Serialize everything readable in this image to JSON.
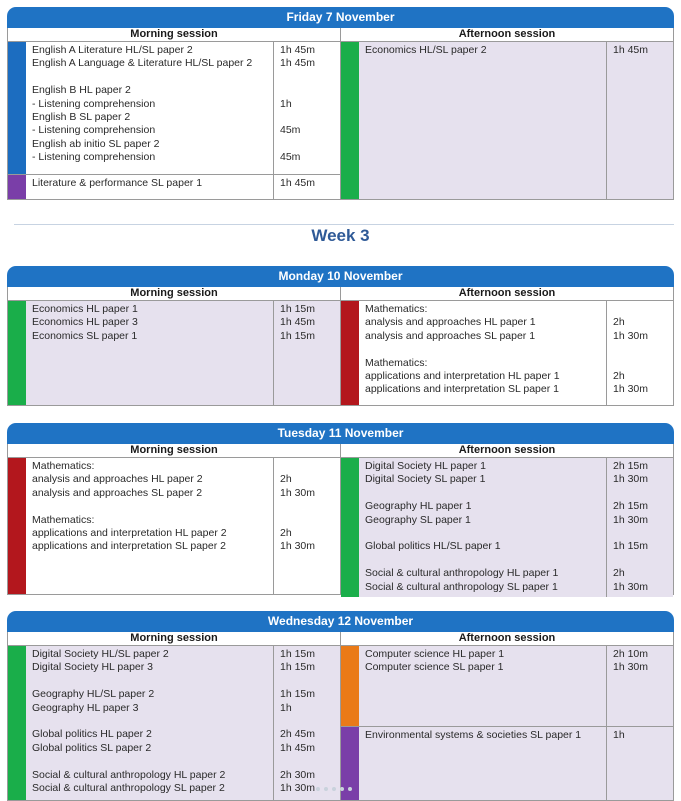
{
  "week_label": "Week 3",
  "days": [
    {
      "title": "Friday 7 November",
      "morning": {
        "label": "Morning session",
        "blocks": [
          {
            "color": "#1c6dc0",
            "lines": [
              {
                "subject": "English A Literature HL/SL paper 2",
                "duration": "1h 45m"
              },
              {
                "subject": "English A Language & Literature HL/SL paper 2",
                "duration": "1h 45m"
              },
              {
                "subject": "",
                "duration": ""
              },
              {
                "subject": "English B HL paper 2",
                "duration": ""
              },
              {
                "subject": "- Listening comprehension",
                "duration": "1h"
              },
              {
                "subject": "English B SL paper 2",
                "duration": ""
              },
              {
                "subject": "- Listening comprehension",
                "duration": "45m"
              },
              {
                "subject": "English ab initio SL paper 2",
                "duration": ""
              },
              {
                "subject": "- Listening comprehension",
                "duration": "45m"
              }
            ]
          },
          {
            "color": "#7a3ea8",
            "lines": [
              {
                "subject": "Literature & performance SL paper 1",
                "duration": "1h 45m"
              }
            ]
          }
        ]
      },
      "afternoon": {
        "label": "Afternoon session",
        "blocks": [
          {
            "color": "#1aae4a",
            "lines": [
              {
                "subject": "Economics HL/SL paper 2",
                "duration": "1h 45m"
              }
            ]
          }
        ]
      }
    },
    {
      "title": "Monday 10 November",
      "morning": {
        "label": "Morning session",
        "blocks": [
          {
            "color": "#1aae4a",
            "lines": [
              {
                "subject": "Economics HL paper 1",
                "duration": "1h 15m"
              },
              {
                "subject": "Economics HL paper 3",
                "duration": "1h 45m"
              },
              {
                "subject": "Economics SL paper 1",
                "duration": "1h 15m"
              }
            ]
          }
        ]
      },
      "afternoon": {
        "label": "Afternoon session",
        "blocks": [
          {
            "color": "#b3171d",
            "lines": [
              {
                "subject": "Mathematics:",
                "duration": ""
              },
              {
                "subject": "analysis and approaches HL paper 1",
                "duration": "2h"
              },
              {
                "subject": "analysis and approaches SL paper 1",
                "duration": "1h 30m"
              },
              {
                "subject": "",
                "duration": ""
              },
              {
                "subject": "Mathematics:",
                "duration": ""
              },
              {
                "subject": "applications and interpretation HL paper 1",
                "duration": "2h"
              },
              {
                "subject": "applications and interpretation SL paper 1",
                "duration": "1h 30m"
              }
            ]
          }
        ]
      }
    },
    {
      "title": "Tuesday 11 November",
      "morning": {
        "label": "Morning session",
        "blocks": [
          {
            "color": "#b3171d",
            "lines": [
              {
                "subject": "Mathematics:",
                "duration": ""
              },
              {
                "subject": "analysis and approaches HL paper 2",
                "duration": "2h"
              },
              {
                "subject": "analysis and approaches SL paper 2",
                "duration": "1h 30m"
              },
              {
                "subject": "",
                "duration": ""
              },
              {
                "subject": "Mathematics:",
                "duration": ""
              },
              {
                "subject": "applications and interpretation HL paper 2",
                "duration": "2h"
              },
              {
                "subject": "applications and interpretation SL paper 2",
                "duration": "1h 30m"
              }
            ]
          }
        ]
      },
      "afternoon": {
        "label": "Afternoon session",
        "blocks": [
          {
            "color": "#1aae4a",
            "lines": [
              {
                "subject": "Digital Society HL paper 1",
                "duration": "2h 15m"
              },
              {
                "subject": "Digital Society SL paper 1",
                "duration": "1h 30m"
              },
              {
                "subject": "",
                "duration": ""
              },
              {
                "subject": "Geography HL paper 1",
                "duration": "2h 15m"
              },
              {
                "subject": "Geography SL paper 1",
                "duration": "1h 30m"
              },
              {
                "subject": "",
                "duration": ""
              },
              {
                "subject": "Global politics HL/SL paper 1",
                "duration": "1h 15m"
              },
              {
                "subject": "",
                "duration": ""
              },
              {
                "subject": "Social & cultural anthropology HL paper 1",
                "duration": "2h"
              },
              {
                "subject": "Social & cultural anthropology SL paper 1",
                "duration": "1h 30m"
              }
            ]
          }
        ]
      }
    },
    {
      "title": "Wednesday 12 November",
      "morning": {
        "label": "Morning session",
        "blocks": [
          {
            "color": "#1aae4a",
            "lines": [
              {
                "subject": "Digital Society HL/SL paper 2",
                "duration": "1h 15m"
              },
              {
                "subject": "Digital Society HL paper 3",
                "duration": "1h 15m"
              },
              {
                "subject": "",
                "duration": ""
              },
              {
                "subject": "Geography HL/SL paper 2",
                "duration": "1h 15m"
              },
              {
                "subject": "Geography HL paper 3",
                "duration": "1h"
              },
              {
                "subject": "",
                "duration": ""
              },
              {
                "subject": "Global politics HL paper 2",
                "duration": "2h 45m"
              },
              {
                "subject": "Global politics SL paper 2",
                "duration": "1h 45m"
              },
              {
                "subject": "",
                "duration": ""
              },
              {
                "subject": "Social & cultural anthropology HL paper 2",
                "duration": "2h 30m"
              },
              {
                "subject": "Social & cultural anthropology SL paper 2",
                "duration": "1h 30m"
              }
            ]
          }
        ]
      },
      "afternoon": {
        "label": "Afternoon session",
        "blocks": [
          {
            "color": "#ea7a17",
            "lines": [
              {
                "subject": "Computer science HL paper 1",
                "duration": "2h 10m"
              },
              {
                "subject": "Computer science SL paper 1",
                "duration": "1h 30m"
              }
            ]
          },
          {
            "color": "#7a3ea8",
            "lines": [
              {
                "subject": "Environmental systems & societies SL paper 1",
                "duration": "1h"
              }
            ]
          }
        ]
      }
    }
  ]
}
